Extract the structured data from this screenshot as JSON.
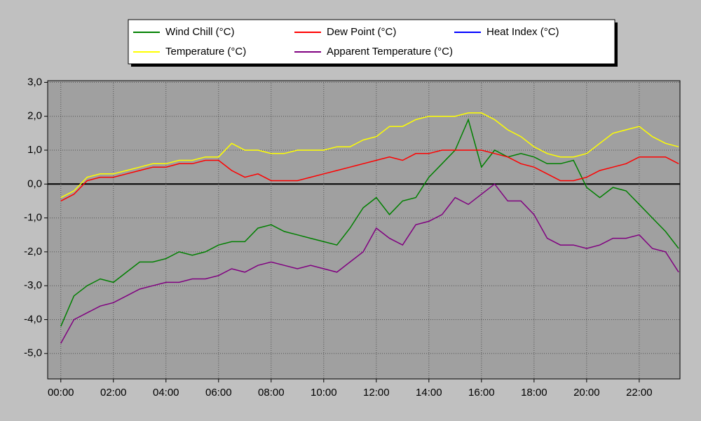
{
  "chart_data": {
    "type": "line",
    "x": [
      0,
      0.5,
      1,
      1.5,
      2,
      2.5,
      3,
      3.5,
      4,
      4.5,
      5,
      5.5,
      6,
      6.5,
      7,
      7.5,
      8,
      8.5,
      9,
      9.5,
      10,
      10.5,
      11,
      11.5,
      12,
      12.5,
      13,
      13.5,
      14,
      14.5,
      15,
      15.5,
      16,
      16.5,
      17,
      17.5,
      18,
      18.5,
      19,
      19.5,
      20,
      20.5,
      21,
      21.5,
      22,
      22.5,
      23,
      23.5
    ],
    "series": [
      {
        "name": "Wind Chill (°C)",
        "color": "#008000",
        "values": [
          -4.2,
          -3.3,
          -3.0,
          -2.8,
          -2.9,
          -2.6,
          -2.3,
          -2.3,
          -2.2,
          -2.0,
          -2.1,
          -2.0,
          -1.8,
          -1.7,
          -1.7,
          -1.3,
          -1.2,
          -1.4,
          -1.5,
          -1.6,
          -1.7,
          -1.8,
          -1.3,
          -0.7,
          -0.4,
          -0.9,
          -0.5,
          -0.4,
          0.2,
          0.6,
          1.0,
          1.9,
          0.5,
          1.0,
          0.8,
          0.9,
          0.8,
          0.6,
          0.6,
          0.7,
          -0.1,
          -0.4,
          -0.1,
          -0.2,
          -0.6,
          -1.0,
          -1.4,
          -1.9
        ]
      },
      {
        "name": "Dew Point (°C)",
        "color": "#ff0000",
        "values": [
          -0.5,
          -0.3,
          0.1,
          0.2,
          0.2,
          0.3,
          0.4,
          0.5,
          0.5,
          0.6,
          0.6,
          0.7,
          0.7,
          0.4,
          0.2,
          0.3,
          0.1,
          0.1,
          0.1,
          0.2,
          0.3,
          0.4,
          0.5,
          0.6,
          0.7,
          0.8,
          0.7,
          0.9,
          0.9,
          1.0,
          1.0,
          1.0,
          1.0,
          0.9,
          0.8,
          0.6,
          0.5,
          0.3,
          0.1,
          0.1,
          0.2,
          0.4,
          0.5,
          0.6,
          0.8,
          0.8,
          0.8,
          0.6
        ]
      },
      {
        "name": "Heat Index (°C)",
        "color": "#0000ff",
        "values": [
          null,
          null,
          null,
          null,
          null,
          null,
          null,
          null,
          null,
          null,
          null,
          null,
          null,
          null,
          null,
          null,
          null,
          null,
          null,
          null,
          null,
          null,
          null,
          null,
          null,
          null,
          null,
          null,
          null,
          null,
          null,
          null,
          null,
          null,
          null,
          null,
          null,
          null,
          null,
          null,
          null,
          null,
          null,
          null,
          null,
          null,
          null,
          null
        ]
      },
      {
        "name": "Temperature (°C)",
        "color": "#ffff00",
        "values": [
          -0.4,
          -0.2,
          0.2,
          0.3,
          0.3,
          0.4,
          0.5,
          0.6,
          0.6,
          0.7,
          0.7,
          0.8,
          0.8,
          1.2,
          1.0,
          1.0,
          0.9,
          0.9,
          1.0,
          1.0,
          1.0,
          1.1,
          1.1,
          1.3,
          1.4,
          1.7,
          1.7,
          1.9,
          2.0,
          2.0,
          2.0,
          2.1,
          2.1,
          1.9,
          1.6,
          1.4,
          1.1,
          0.9,
          0.8,
          0.8,
          0.9,
          1.2,
          1.5,
          1.6,
          1.7,
          1.4,
          1.2,
          1.1
        ]
      },
      {
        "name": "Apparent Temperature (°C)",
        "color": "#800080",
        "values": [
          -4.7,
          -4.0,
          -3.8,
          -3.6,
          -3.5,
          -3.3,
          -3.1,
          -3.0,
          -2.9,
          -2.9,
          -2.8,
          -2.8,
          -2.7,
          -2.5,
          -2.6,
          -2.4,
          -2.3,
          -2.4,
          -2.5,
          -2.4,
          -2.5,
          -2.6,
          -2.3,
          -2.0,
          -1.3,
          -1.6,
          -1.8,
          -1.2,
          -1.1,
          -0.9,
          -0.4,
          -0.6,
          -0.3,
          0.0,
          -0.5,
          -0.5,
          -0.9,
          -1.6,
          -1.8,
          -1.8,
          -1.9,
          -1.8,
          -1.6,
          -1.6,
          -1.5,
          -1.9,
          -2.0,
          -2.6
        ]
      }
    ],
    "xlim": [
      -0.5,
      23.55
    ],
    "xticks": [
      {
        "value": 0,
        "label": "00:00"
      },
      {
        "value": 2,
        "label": "02:00"
      },
      {
        "value": 4,
        "label": "04:00"
      },
      {
        "value": 6,
        "label": "06:00"
      },
      {
        "value": 8,
        "label": "08:00"
      },
      {
        "value": 10,
        "label": "10:00"
      },
      {
        "value": 12,
        "label": "12:00"
      },
      {
        "value": 14,
        "label": "14:00"
      },
      {
        "value": 16,
        "label": "16:00"
      },
      {
        "value": 18,
        "label": "18:00"
      },
      {
        "value": 20,
        "label": "20:00"
      },
      {
        "value": 22,
        "label": "22:00"
      }
    ],
    "ylim": [
      -5.75,
      3.05
    ],
    "yticks": [
      {
        "value": 3,
        "label": "3,0"
      },
      {
        "value": 2,
        "label": "2,0"
      },
      {
        "value": 1,
        "label": "1,0"
      },
      {
        "value": 0,
        "label": "0,0"
      },
      {
        "value": -1,
        "label": "-1,0"
      },
      {
        "value": -2,
        "label": "-2,0"
      },
      {
        "value": -3,
        "label": "-3,0"
      },
      {
        "value": -4,
        "label": "-4,0"
      },
      {
        "value": -5,
        "label": "-5,0"
      }
    ],
    "grid": true,
    "legend": "top"
  }
}
